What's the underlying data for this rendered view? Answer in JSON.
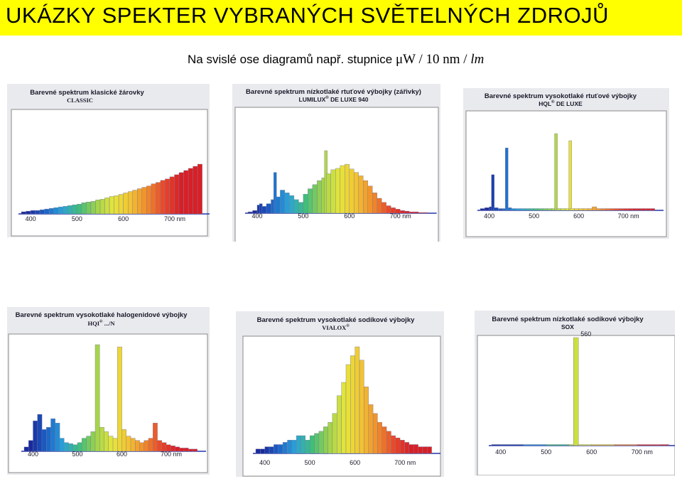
{
  "header": {
    "title": "UKÁZKY  SPEKTER  VYBRANÝCH  SVĚTELNÝCH  ZDROJŮ",
    "subtitle_text": "Na svislé ose diagramů např. stupnice",
    "subtitle_unit_main": "μW / 10 nm / ",
    "subtitle_unit_lm": "lm",
    "banner_color": "#ffff00"
  },
  "panels": [
    {
      "title": "Barevné spektrum klasické žárovky",
      "subtitle": "CLASSIC",
      "subtitle_sup": "",
      "subtitle_after": ""
    },
    {
      "title": "Barevné spektrum nízkotlaké rtuťové výbojky (zářivky)",
      "subtitle": "LUMILUX",
      "subtitle_sup": "®",
      "subtitle_after": " DE LUXE  940"
    },
    {
      "title": "Barevné spektrum vysokotlaké rtuťové výbojky",
      "subtitle": "HQL",
      "subtitle_sup": "®",
      "subtitle_after": " DE LUXE"
    },
    {
      "title": "Barevné spektrum vysokotlaké halogenidové výbojky",
      "subtitle": "HQI",
      "subtitle_sup": "®",
      "subtitle_after": " .../N"
    },
    {
      "title": "Barevné spektrum vysokotlaké sodíkové výbojky",
      "subtitle": "VIALOX",
      "subtitle_sup": "®",
      "subtitle_after": ""
    },
    {
      "title": "Barevné spektrum nízkotlaké sodíkové výbojky",
      "subtitle": "SOX",
      "subtitle_sup": "",
      "subtitle_after": ""
    }
  ],
  "axis_labels": [
    "400",
    "500",
    "600",
    "700  nm"
  ],
  "annotations": {
    "sox_peak_label": "560"
  },
  "spectrum_colors": [
    "#1a2a9c",
    "#1b62c8",
    "#2aa3d8",
    "#3fbf7a",
    "#9fd34a",
    "#e6e63a",
    "#f3c232",
    "#f08a2a",
    "#e8452a",
    "#d81f26"
  ],
  "chart_data": [
    {
      "type": "bar",
      "title": "Barevné spektrum klasické žárovky",
      "xlabel": "nm",
      "x": [
        380,
        390,
        400,
        410,
        420,
        430,
        440,
        450,
        460,
        470,
        480,
        490,
        500,
        510,
        520,
        530,
        540,
        550,
        560,
        570,
        580,
        590,
        600,
        610,
        620,
        630,
        640,
        650,
        660,
        670,
        680,
        690,
        700,
        710,
        720,
        730,
        740,
        750,
        760
      ],
      "values": [
        3,
        4,
        5,
        5,
        6,
        7,
        8,
        9,
        10,
        11,
        12,
        13,
        14,
        16,
        17,
        18,
        20,
        21,
        23,
        25,
        26,
        28,
        30,
        32,
        34,
        36,
        38,
        40,
        43,
        45,
        48,
        50,
        53,
        56,
        59,
        62,
        65,
        68,
        71
      ]
    },
    {
      "type": "bar",
      "title": "Barevné spektrum nízkotlaké rtuťové výbojky (zářivky)",
      "xlabel": "nm",
      "x": [
        380,
        390,
        400,
        405,
        410,
        420,
        430,
        436,
        440,
        450,
        460,
        470,
        480,
        490,
        500,
        510,
        520,
        530,
        540,
        546,
        550,
        560,
        570,
        580,
        590,
        600,
        610,
        620,
        630,
        640,
        650,
        660,
        670,
        680,
        690,
        700,
        710,
        720,
        730,
        740,
        750,
        760
      ],
      "values": [
        2,
        4,
        12,
        14,
        10,
        14,
        20,
        60,
        24,
        34,
        30,
        26,
        20,
        16,
        28,
        36,
        42,
        48,
        52,
        92,
        58,
        64,
        66,
        70,
        72,
        65,
        60,
        55,
        48,
        40,
        30,
        22,
        16,
        11,
        8,
        6,
        4,
        3,
        2,
        2,
        1,
        1
      ]
    },
    {
      "type": "bar",
      "title": "Barevné spektrum vysokotlaké rtuťové výbojky",
      "xlabel": "nm",
      "x": [
        380,
        390,
        400,
        405,
        410,
        420,
        430,
        436,
        440,
        450,
        460,
        470,
        480,
        490,
        500,
        510,
        520,
        530,
        540,
        546,
        550,
        560,
        570,
        578,
        580,
        590,
        600,
        610,
        620,
        630,
        640,
        650,
        660,
        670,
        680,
        690,
        700,
        710,
        720,
        730,
        740,
        750,
        760
      ],
      "values": [
        2,
        3,
        4,
        40,
        3,
        2,
        2,
        70,
        3,
        2,
        2,
        2,
        2,
        2,
        2,
        2,
        2,
        2,
        2,
        86,
        2,
        2,
        2,
        78,
        2,
        2,
        2,
        2,
        2,
        4,
        2,
        2,
        2,
        2,
        2,
        2,
        2,
        2,
        2,
        2,
        2,
        2,
        2
      ]
    },
    {
      "type": "bar",
      "title": "Barevné spektrum vysokotlaké halogenidové výbojky",
      "xlabel": "nm",
      "x": [
        380,
        390,
        400,
        410,
        420,
        430,
        440,
        450,
        460,
        470,
        480,
        490,
        500,
        510,
        520,
        530,
        540,
        550,
        560,
        570,
        580,
        590,
        600,
        610,
        620,
        630,
        640,
        650,
        660,
        670,
        680,
        690,
        700,
        710,
        720,
        730,
        740,
        750,
        760
      ],
      "values": [
        4,
        10,
        28,
        34,
        20,
        22,
        30,
        26,
        12,
        8,
        7,
        6,
        8,
        12,
        14,
        18,
        98,
        22,
        18,
        14,
        12,
        96,
        20,
        14,
        12,
        10,
        8,
        10,
        12,
        26,
        10,
        8,
        6,
        5,
        4,
        3,
        3,
        2,
        2
      ]
    },
    {
      "type": "bar",
      "title": "Barevné spektrum vysokotlaké sodíkové výbojky",
      "xlabel": "nm",
      "x": [
        380,
        390,
        400,
        410,
        420,
        430,
        440,
        450,
        460,
        470,
        480,
        490,
        500,
        510,
        520,
        530,
        540,
        550,
        560,
        570,
        580,
        590,
        600,
        610,
        620,
        630,
        640,
        650,
        660,
        670,
        680,
        690,
        700,
        710,
        720,
        730,
        740,
        750,
        760
      ],
      "values": [
        2,
        2,
        3,
        3,
        4,
        4,
        5,
        6,
        6,
        8,
        8,
        6,
        8,
        9,
        10,
        12,
        14,
        18,
        26,
        32,
        40,
        44,
        48,
        42,
        30,
        22,
        18,
        14,
        12,
        10,
        8,
        7,
        6,
        5,
        4,
        4,
        3,
        3,
        3
      ]
    },
    {
      "type": "bar",
      "title": "Barevné spektrum nízkotlaké sodíkové výbojky",
      "xlabel": "nm",
      "x": [
        380,
        400,
        450,
        500,
        550,
        560,
        570,
        600,
        650,
        700,
        750,
        760
      ],
      "values": [
        1,
        1,
        1,
        1,
        1,
        100,
        1,
        1,
        1,
        1,
        1,
        1
      ],
      "annotations": [
        "560"
      ]
    }
  ]
}
